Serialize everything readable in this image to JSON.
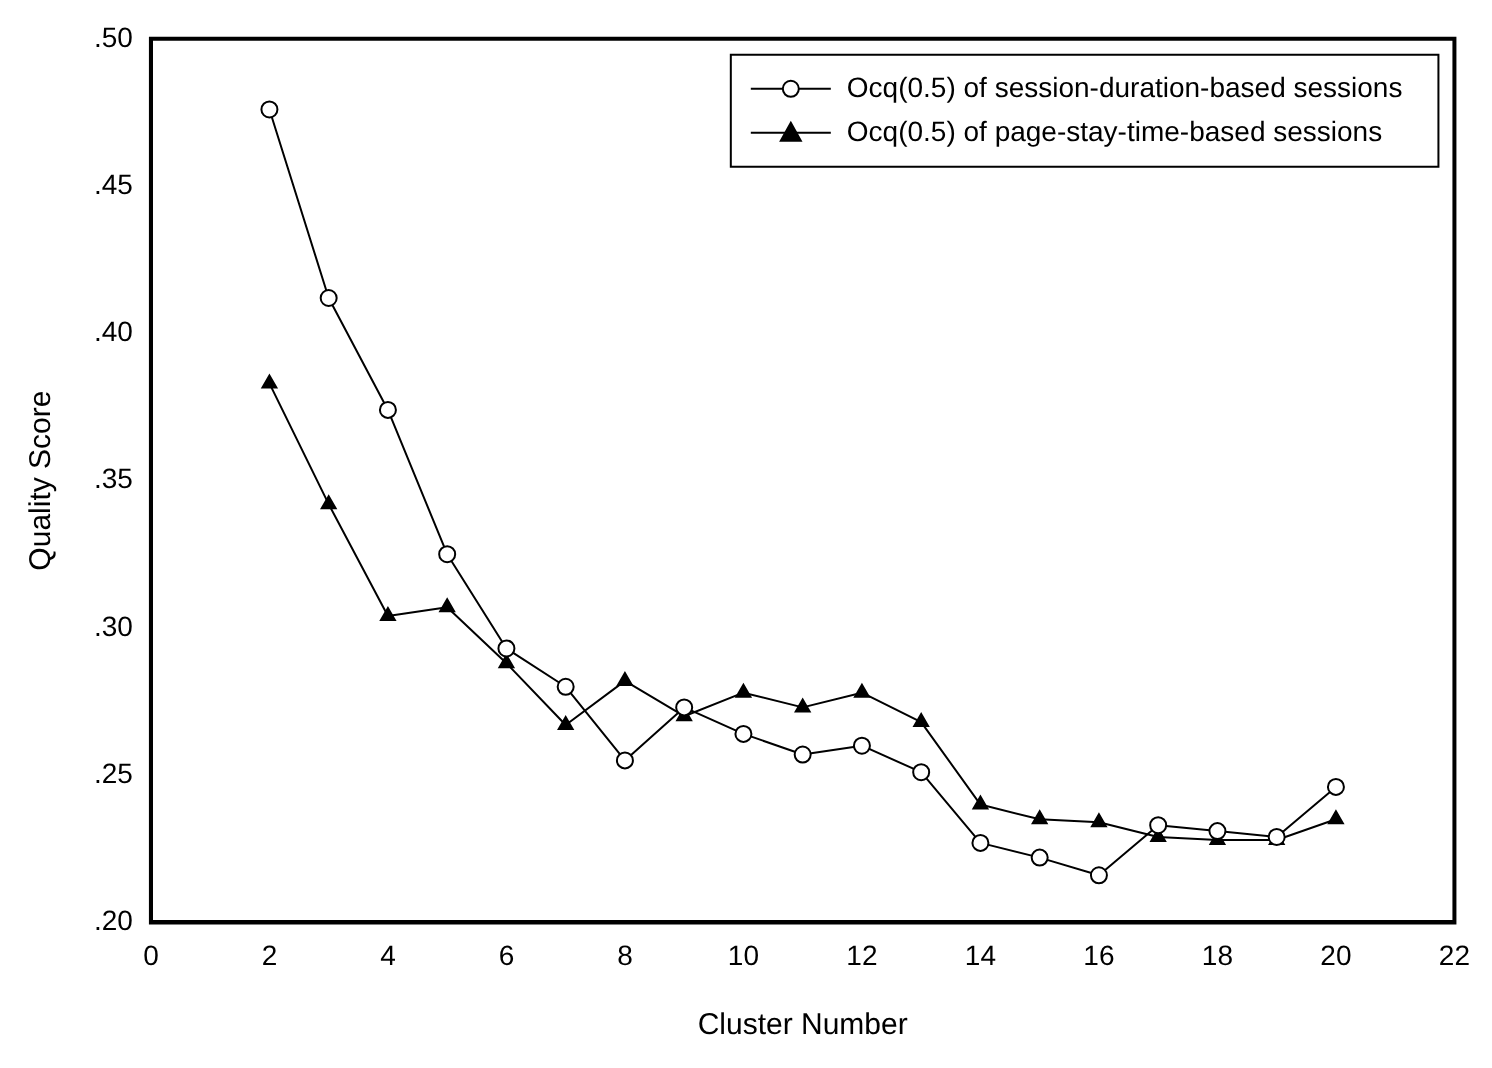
{
  "chart_data": {
    "type": "line",
    "xlabel": "Cluster Number",
    "ylabel": "Quality Score",
    "x": [
      2,
      3,
      4,
      5,
      6,
      7,
      8,
      9,
      10,
      11,
      12,
      13,
      14,
      15,
      16,
      17,
      18,
      19,
      20
    ],
    "series": [
      {
        "name": "Ocq(0.5) of session-duration-based sessions",
        "color": "#000000",
        "marker": "circle",
        "values": [
          0.476,
          0.412,
          0.374,
          0.325,
          0.293,
          0.28,
          0.255,
          0.273,
          0.264,
          0.257,
          0.26,
          0.251,
          0.227,
          0.222,
          0.216,
          0.233,
          0.231,
          0.229,
          0.246
        ]
      },
      {
        "name": "Ocq(0.5) of page-stay-time-based sessions",
        "color": "#000000",
        "marker": "triangle",
        "values": [
          0.383,
          0.342,
          0.304,
          0.307,
          0.288,
          0.267,
          0.282,
          0.27,
          0.278,
          0.273,
          0.278,
          0.268,
          0.24,
          0.235,
          0.234,
          0.229,
          0.228,
          0.228,
          0.235
        ]
      }
    ],
    "xlim": [
      0,
      22
    ],
    "xticks": [
      0,
      2,
      4,
      6,
      8,
      10,
      12,
      14,
      16,
      18,
      20,
      22
    ],
    "ylim": [
      0.2,
      0.5
    ],
    "yticks": [
      {
        "value": 0.2,
        "label": ".20"
      },
      {
        "value": 0.25,
        "label": ".25"
      },
      {
        "value": 0.3,
        "label": ".30"
      },
      {
        "value": 0.35,
        "label": ".35"
      },
      {
        "value": 0.4,
        "label": ".40"
      },
      {
        "value": 0.45,
        "label": ".45"
      },
      {
        "value": 0.5,
        "label": ".50"
      }
    ],
    "legend": "top right",
    "grid": false,
    "line_style": "solid"
  }
}
